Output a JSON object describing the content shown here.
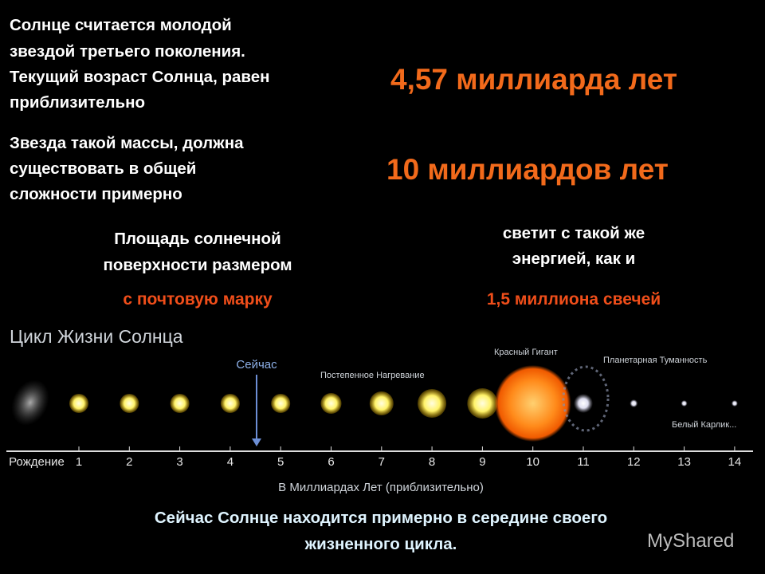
{
  "intro": {
    "lines": [
      "Солнце считается молодой",
      "звездой третьего поколения.",
      "Текущий возраст Солнца, равен",
      "приблизительно"
    ],
    "value": "4,57 миллиарда лет"
  },
  "lifespan": {
    "lines": [
      "Звезда такой массы, должна",
      "существовать в общей",
      "сложности примерно"
    ],
    "value": "10 миллиардов лет"
  },
  "surface": {
    "lines": [
      "Площадь солнечной",
      "поверхности размером"
    ],
    "value": "с почтовую марку"
  },
  "energy": {
    "lines": [
      "светит с такой же",
      "энергией, как и"
    ],
    "value": "1,5 миллиона свечей"
  },
  "timeline": {
    "title": "Цикл Жизни Солнца",
    "now": "Сейчас",
    "stages": [
      "Постепенное Нагревание",
      "Красный Гигант",
      "Планетарная Туманность",
      "Белый Карлик..."
    ],
    "axis_labels": [
      "Рождение",
      1,
      2,
      3,
      4,
      5,
      6,
      7,
      8,
      9,
      10,
      11,
      12,
      13,
      14
    ],
    "axis_title": "В Миллиардах Лет (приблизительно)"
  },
  "conclusion": {
    "lines": [
      "Сейчас Солнце находится примерно в середине своего",
      "жизненного цикла."
    ]
  },
  "watermark": "MyShared"
}
